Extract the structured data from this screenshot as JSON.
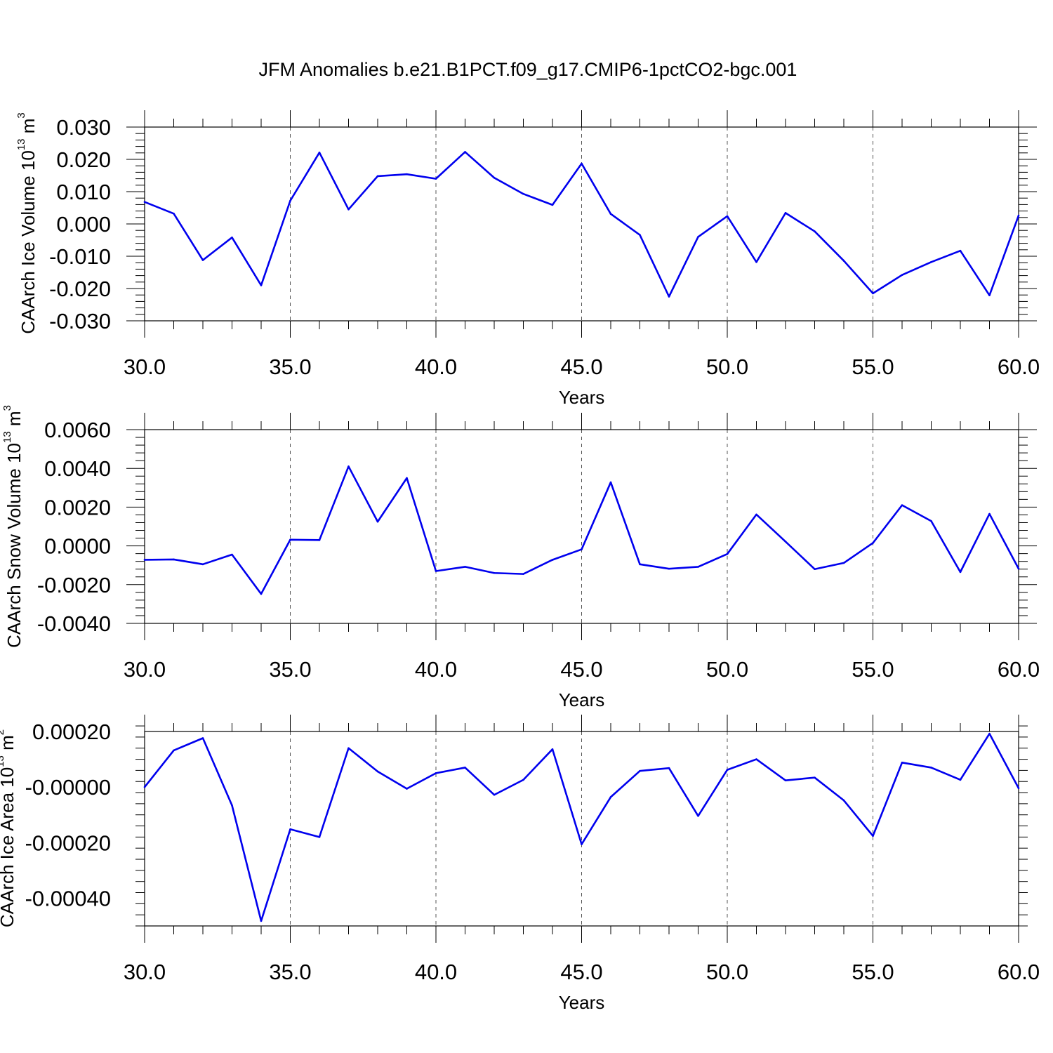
{
  "title": "JFM Anomalies b.e21.B1PCT.f09_g17.CMIP6-1pctCO2-bgc.001",
  "colors": {
    "line": "#0000ee",
    "axis": "#000000",
    "grid": "#555555"
  },
  "chart_data": [
    {
      "type": "line",
      "ylabel": {
        "text": "CAArch Ice Volume 10",
        "sup": "13",
        "unit": " m",
        "unitsup": "3"
      },
      "xlabel": "Years",
      "xlim": [
        30,
        60
      ],
      "ylim": [
        -0.03,
        0.03
      ],
      "x_ticks": [
        "30.0",
        "35.0",
        "40.0",
        "45.0",
        "50.0",
        "55.0",
        "60.0"
      ],
      "y_ticks": [
        "-0.030",
        "-0.020",
        "-0.010",
        "0.000",
        "0.010",
        "0.020",
        "0.030"
      ],
      "x": [
        30,
        31,
        32,
        33,
        34,
        35,
        36,
        37,
        38,
        39,
        40,
        41,
        42,
        43,
        44,
        45,
        46,
        47,
        48,
        49,
        50,
        51,
        52,
        53,
        54,
        55,
        56,
        57,
        58,
        59,
        60
      ],
      "values": [
        0.0068,
        0.0032,
        -0.0112,
        -0.0042,
        -0.019,
        0.0072,
        0.0221,
        0.0045,
        0.0148,
        0.0154,
        0.014,
        0.0223,
        0.0143,
        0.0093,
        0.0059,
        0.0187,
        0.0031,
        -0.0034,
        -0.0225,
        -0.004,
        0.0024,
        -0.0118,
        0.0034,
        -0.0023,
        -0.0114,
        -0.0215,
        -0.0158,
        -0.0118,
        -0.0083,
        -0.0221,
        0.0026
      ]
    },
    {
      "type": "line",
      "ylabel": {
        "text": "CAArch Snow Volume 10",
        "sup": "13",
        "unit": " m",
        "unitsup": "3"
      },
      "xlabel": "Years",
      "xlim": [
        30,
        60
      ],
      "ylim": [
        -0.004,
        0.006
      ],
      "x_ticks": [
        "30.0",
        "35.0",
        "40.0",
        "45.0",
        "50.0",
        "55.0",
        "60.0"
      ],
      "y_ticks": [
        "-0.0040",
        "-0.0020",
        "0.0000",
        "0.0020",
        "0.0040",
        "0.0060"
      ],
      "x": [
        30,
        31,
        32,
        33,
        34,
        35,
        36,
        37,
        38,
        39,
        40,
        41,
        42,
        43,
        44,
        45,
        46,
        47,
        48,
        49,
        50,
        51,
        52,
        53,
        54,
        55,
        56,
        57,
        58,
        59,
        60
      ],
      "values": [
        -0.00072,
        -0.0007,
        -0.00095,
        -0.00045,
        -0.00248,
        0.00032,
        0.0003,
        0.0041,
        0.00125,
        0.0035,
        -0.0013,
        -0.00108,
        -0.0014,
        -0.00145,
        -0.00072,
        -0.00018,
        0.00328,
        -0.00095,
        -0.00118,
        -0.00108,
        -0.00042,
        0.00162,
        0.00022,
        -0.0012,
        -0.00088,
        0.00015,
        0.0021,
        0.00128,
        -0.00135,
        0.00165,
        -0.00118
      ]
    },
    {
      "type": "line",
      "ylabel": {
        "text": "CAArch Ice Area 10",
        "sup": "13",
        "unit": " m",
        "unitsup": "2"
      },
      "xlabel": "Years",
      "xlim": [
        30,
        60
      ],
      "ylim": [
        -0.0005,
        0.0002
      ],
      "x_ticks": [
        "30.0",
        "35.0",
        "40.0",
        "45.0",
        "50.0",
        "55.0",
        "60.0"
      ],
      "y_ticks": [
        "-0.00040",
        "-0.00020",
        "-0.00000",
        "0.00020"
      ],
      "x": [
        30,
        31,
        32,
        33,
        34,
        35,
        36,
        37,
        38,
        39,
        40,
        41,
        42,
        43,
        44,
        45,
        46,
        47,
        48,
        49,
        50,
        51,
        52,
        53,
        54,
        55,
        56,
        57,
        58,
        59,
        60
      ],
      "values": [
        0.0,
        0.000132,
        0.000176,
        -6.6e-05,
        -0.000482,
        -0.000152,
        -0.00018,
        0.00014,
        5.6e-05,
        -6e-06,
        5e-05,
        7e-05,
        -2.8e-05,
        2.6e-05,
        0.000136,
        -0.000206,
        -3.6e-05,
        5.8e-05,
        6.8e-05,
        -0.000104,
        6.2e-05,
        0.0001,
        2.4e-05,
        3.4e-05,
        -4.8e-05,
        -0.000176,
        8.8e-05,
        7e-05,
        2.6e-05,
        0.000192,
        -4e-06
      ]
    }
  ]
}
